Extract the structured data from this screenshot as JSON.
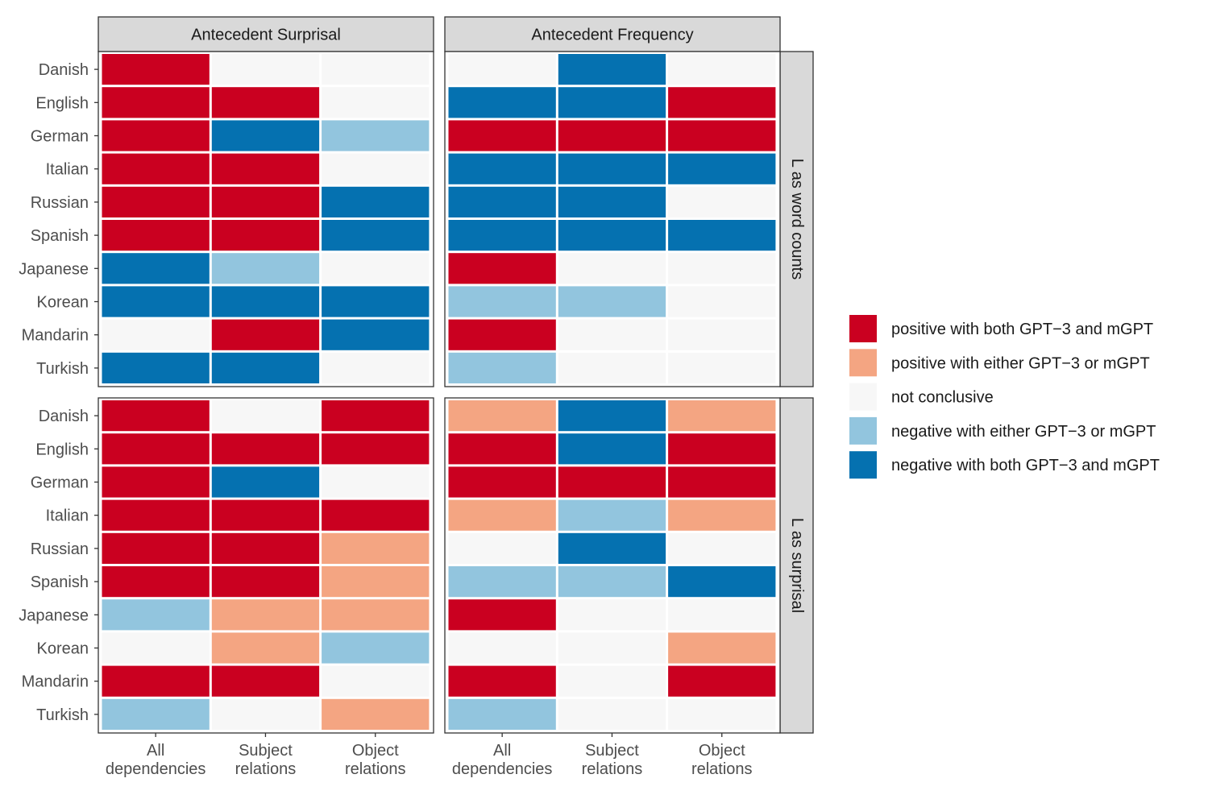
{
  "chart_data": {
    "type": "heatmap",
    "facet_columns": [
      "Antecedent Surprisal",
      "Antecedent Frequency"
    ],
    "facet_rows": [
      "L as word counts",
      "L as surprisal"
    ],
    "y_categories": [
      "Danish",
      "English",
      "German",
      "Italian",
      "Russian",
      "Spanish",
      "Japanese",
      "Korean",
      "Mandarin",
      "Turkish"
    ],
    "x_categories": [
      [
        "All",
        "dependencies"
      ],
      [
        "Subject",
        "relations"
      ],
      [
        "Object",
        "relations"
      ]
    ],
    "legend": [
      {
        "key": "pos_both",
        "label": "positive with both GPT−3 and mGPT",
        "color": "#CA0020"
      },
      {
        "key": "pos_either",
        "label": "positive with either GPT−3 or mGPT",
        "color": "#F4A582"
      },
      {
        "key": "nc",
        "label": "not conclusive",
        "color": "#F7F7F7"
      },
      {
        "key": "neg_either",
        "label": "negative with either GPT−3 or mGPT",
        "color": "#92C5DE"
      },
      {
        "key": "neg_both",
        "label": "negative with both GPT−3 and mGPT",
        "color": "#0571B0"
      }
    ],
    "panels": [
      {
        "column": "Antecedent Surprisal",
        "row": "L as word counts",
        "cells": [
          [
            "pos_both",
            "nc",
            "nc"
          ],
          [
            "pos_both",
            "pos_both",
            "nc"
          ],
          [
            "pos_both",
            "neg_both",
            "neg_either"
          ],
          [
            "pos_both",
            "pos_both",
            "nc"
          ],
          [
            "pos_both",
            "pos_both",
            "neg_both"
          ],
          [
            "pos_both",
            "pos_both",
            "neg_both"
          ],
          [
            "neg_both",
            "neg_either",
            "nc"
          ],
          [
            "neg_both",
            "neg_both",
            "neg_both"
          ],
          [
            "nc",
            "pos_both",
            "neg_both"
          ],
          [
            "neg_both",
            "neg_both",
            "nc"
          ]
        ]
      },
      {
        "column": "Antecedent Frequency",
        "row": "L as word counts",
        "cells": [
          [
            "nc",
            "neg_both",
            "nc"
          ],
          [
            "neg_both",
            "neg_both",
            "pos_both"
          ],
          [
            "pos_both",
            "pos_both",
            "pos_both"
          ],
          [
            "neg_both",
            "neg_both",
            "neg_both"
          ],
          [
            "neg_both",
            "neg_both",
            "nc"
          ],
          [
            "neg_both",
            "neg_both",
            "neg_both"
          ],
          [
            "pos_both",
            "nc",
            "nc"
          ],
          [
            "neg_either",
            "neg_either",
            "nc"
          ],
          [
            "pos_both",
            "nc",
            "nc"
          ],
          [
            "neg_either",
            "nc",
            "nc"
          ]
        ]
      },
      {
        "column": "Antecedent Surprisal",
        "row": "L as surprisal",
        "cells": [
          [
            "pos_both",
            "nc",
            "pos_both"
          ],
          [
            "pos_both",
            "pos_both",
            "pos_both"
          ],
          [
            "pos_both",
            "neg_both",
            "nc"
          ],
          [
            "pos_both",
            "pos_both",
            "pos_both"
          ],
          [
            "pos_both",
            "pos_both",
            "pos_either"
          ],
          [
            "pos_both",
            "pos_both",
            "pos_either"
          ],
          [
            "neg_either",
            "pos_either",
            "pos_either"
          ],
          [
            "nc",
            "pos_either",
            "neg_either"
          ],
          [
            "pos_both",
            "pos_both",
            "nc"
          ],
          [
            "neg_either",
            "nc",
            "pos_either"
          ]
        ]
      },
      {
        "column": "Antecedent Frequency",
        "row": "L as surprisal",
        "cells": [
          [
            "pos_either",
            "neg_both",
            "pos_either"
          ],
          [
            "pos_both",
            "neg_both",
            "pos_both"
          ],
          [
            "pos_both",
            "pos_both",
            "pos_both"
          ],
          [
            "pos_either",
            "neg_either",
            "pos_either"
          ],
          [
            "nc",
            "neg_both",
            "nc"
          ],
          [
            "neg_either",
            "neg_either",
            "neg_both"
          ],
          [
            "pos_both",
            "nc",
            "nc"
          ],
          [
            "nc",
            "nc",
            "pos_either"
          ],
          [
            "pos_both",
            "nc",
            "pos_both"
          ],
          [
            "neg_either",
            "nc",
            "nc"
          ]
        ]
      }
    ]
  }
}
